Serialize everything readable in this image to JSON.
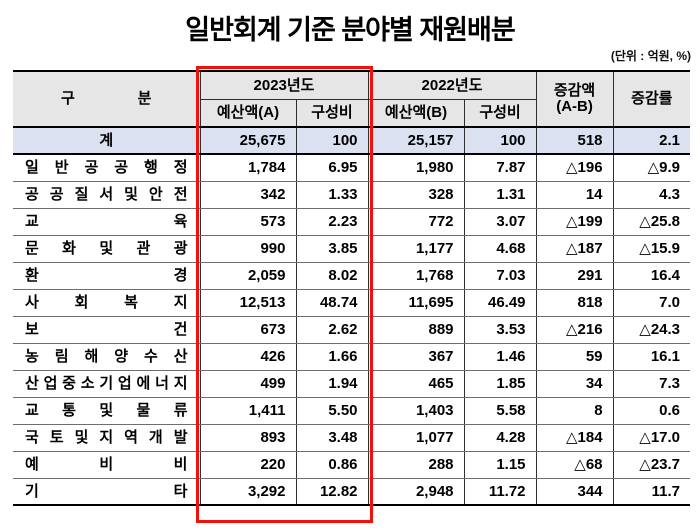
{
  "title": "일반회계 기준 분야별 재원배분",
  "unit_note": "(단위 : 억원, %)",
  "colors": {
    "header_bg": "#e6e6e6",
    "total_row_bg": "#dbe1f1",
    "highlight_red": "#f2100c",
    "grid_dark": "#2f2f2f",
    "grid_light": "#6e6e6e"
  },
  "table": {
    "header": {
      "category": "구 분",
      "year_2023": "2023년도",
      "year_2022": "2022년도",
      "budget_a": "예산액(A)",
      "ratio_2023": "구성비",
      "budget_b": "예산액(B)",
      "ratio_2022": "구성비",
      "diff": "증감액\n(A-B)",
      "rate": "증감률"
    },
    "rows": [
      {
        "label": "계",
        "total": true,
        "values": [
          "25,675",
          "100",
          "25,157",
          "100",
          "518",
          "2.1"
        ]
      },
      {
        "label": "일 반 공 공 행 정",
        "total": false,
        "values": [
          "1,784",
          "6.95",
          "1,980",
          "7.87",
          "△196",
          "△9.9"
        ]
      },
      {
        "label": "공 공 질 서 및 안 전",
        "total": false,
        "values": [
          "342",
          "1.33",
          "328",
          "1.31",
          "14",
          "4.3"
        ]
      },
      {
        "label": "교 육",
        "total": false,
        "values": [
          "573",
          "2.23",
          "772",
          "3.07",
          "△199",
          "△25.8"
        ]
      },
      {
        "label": "문 화 및 관 광",
        "total": false,
        "values": [
          "990",
          "3.85",
          "1,177",
          "4.68",
          "△187",
          "△15.9"
        ]
      },
      {
        "label": "환 경",
        "total": false,
        "values": [
          "2,059",
          "8.02",
          "1,768",
          "7.03",
          "291",
          "16.4"
        ]
      },
      {
        "label": "사 회 복 지",
        "total": false,
        "values": [
          "12,513",
          "48.74",
          "11,695",
          "46.49",
          "818",
          "7.0"
        ]
      },
      {
        "label": "보 건",
        "total": false,
        "values": [
          "673",
          "2.62",
          "889",
          "3.53",
          "△216",
          "△24.3"
        ]
      },
      {
        "label": "농 림 해 양 수 산",
        "total": false,
        "values": [
          "426",
          "1.66",
          "367",
          "1.46",
          "59",
          "16.1"
        ]
      },
      {
        "label": "산 업 중 소 기 업 에 너 지",
        "total": false,
        "values": [
          "499",
          "1.94",
          "465",
          "1.85",
          "34",
          "7.3"
        ]
      },
      {
        "label": "교 통 및 물 류",
        "total": false,
        "values": [
          "1,411",
          "5.50",
          "1,403",
          "5.58",
          "8",
          "0.6"
        ]
      },
      {
        "label": "국 토 및 지 역 개 발",
        "total": false,
        "values": [
          "893",
          "3.48",
          "1,077",
          "4.28",
          "△184",
          "△17.0"
        ]
      },
      {
        "label": "예 비 비",
        "total": false,
        "values": [
          "220",
          "0.86",
          "288",
          "1.15",
          "△68",
          "△23.7"
        ]
      },
      {
        "label": "기 타",
        "total": false,
        "values": [
          "3,292",
          "12.82",
          "2,948",
          "11.72",
          "344",
          "11.7"
        ]
      }
    ]
  }
}
